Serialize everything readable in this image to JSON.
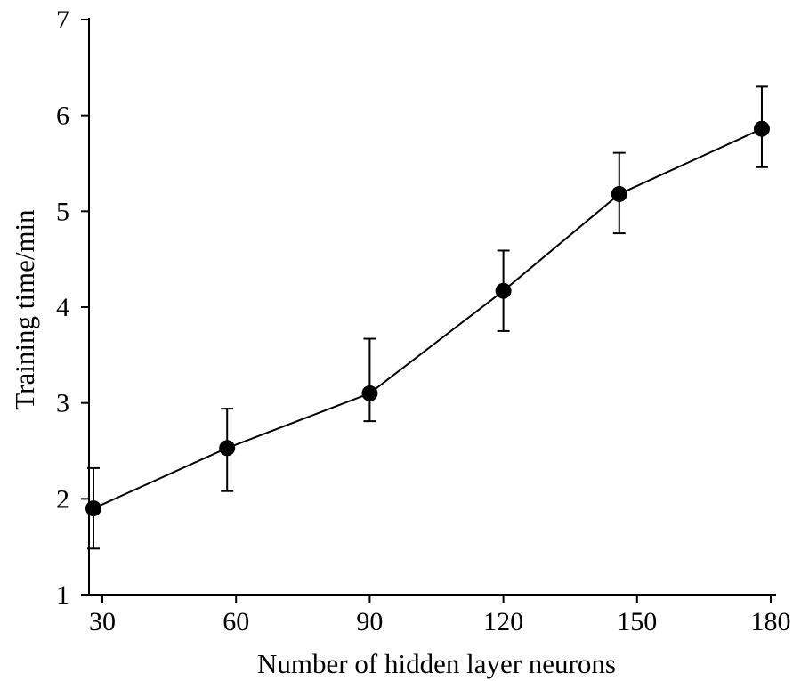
{
  "chart_data": {
    "type": "line",
    "title": "",
    "xlabel": "Number of hidden layer neurons",
    "ylabel": "Training time/min",
    "xlim": [
      27,
      181
    ],
    "ylim": [
      1,
      7
    ],
    "x_ticks": [
      30,
      60,
      90,
      120,
      150,
      180
    ],
    "y_ticks": [
      1,
      2,
      3,
      4,
      5,
      6,
      7
    ],
    "grid": false,
    "legend": "none",
    "color": "#000000",
    "series": [
      {
        "x": [
          28,
          58,
          90,
          120,
          146,
          178
        ],
        "y": [
          1.9,
          2.53,
          3.1,
          4.17,
          5.18,
          5.86
        ],
        "err_low": [
          1.48,
          2.08,
          2.81,
          3.75,
          4.77,
          5.46
        ],
        "err_high": [
          2.32,
          2.94,
          3.67,
          4.59,
          5.61,
          6.3
        ]
      }
    ]
  }
}
